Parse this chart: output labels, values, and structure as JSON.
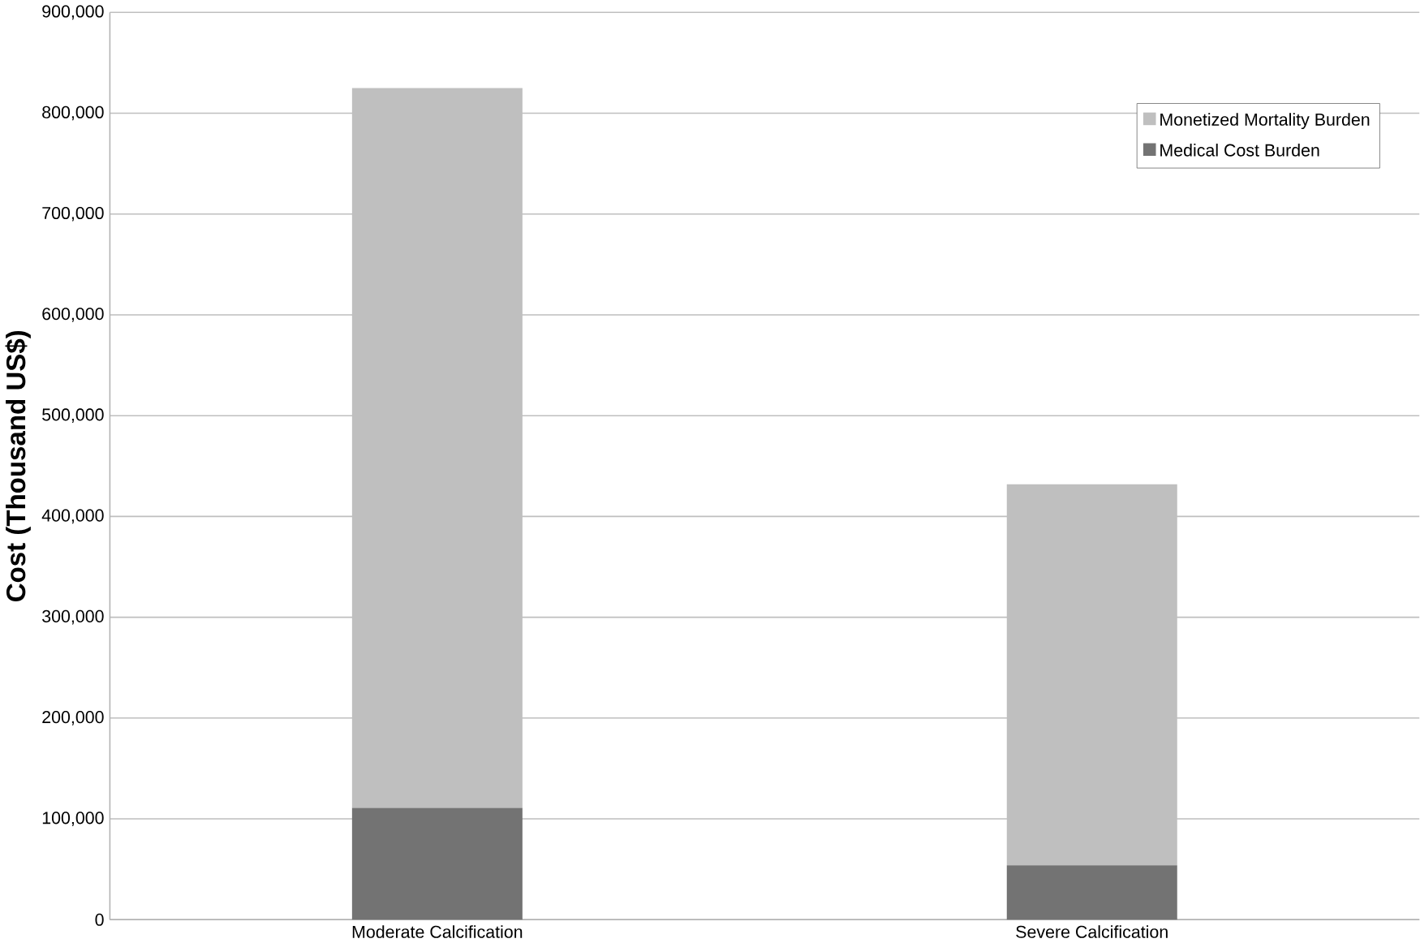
{
  "chart_data": {
    "type": "bar",
    "stacked": true,
    "ylabel": "Cost (Thousand US$)",
    "categories": [
      "Moderate Calcification",
      "Severe Calcification"
    ],
    "series": [
      {
        "name": "Medical Cost Burden",
        "color": "#737373",
        "values": [
          111000,
          54000
        ]
      },
      {
        "name": "Monetized Mortality Burden",
        "color": "#bfbfbf",
        "values": [
          714000,
          378000
        ]
      }
    ],
    "ylim": [
      0,
      900000
    ],
    "yticks": [
      {
        "value": 0,
        "label": "0"
      },
      {
        "value": 100000,
        "label": "100,000"
      },
      {
        "value": 200000,
        "label": "200,000"
      },
      {
        "value": 300000,
        "label": "300,000"
      },
      {
        "value": 400000,
        "label": "400,000"
      },
      {
        "value": 500000,
        "label": "500,000"
      },
      {
        "value": 600000,
        "label": "600,000"
      },
      {
        "value": 700000,
        "label": "700,000"
      },
      {
        "value": 800000,
        "label": "800,000"
      },
      {
        "value": 900000,
        "label": "900,000"
      }
    ],
    "grid": "y",
    "legend": "top right"
  }
}
